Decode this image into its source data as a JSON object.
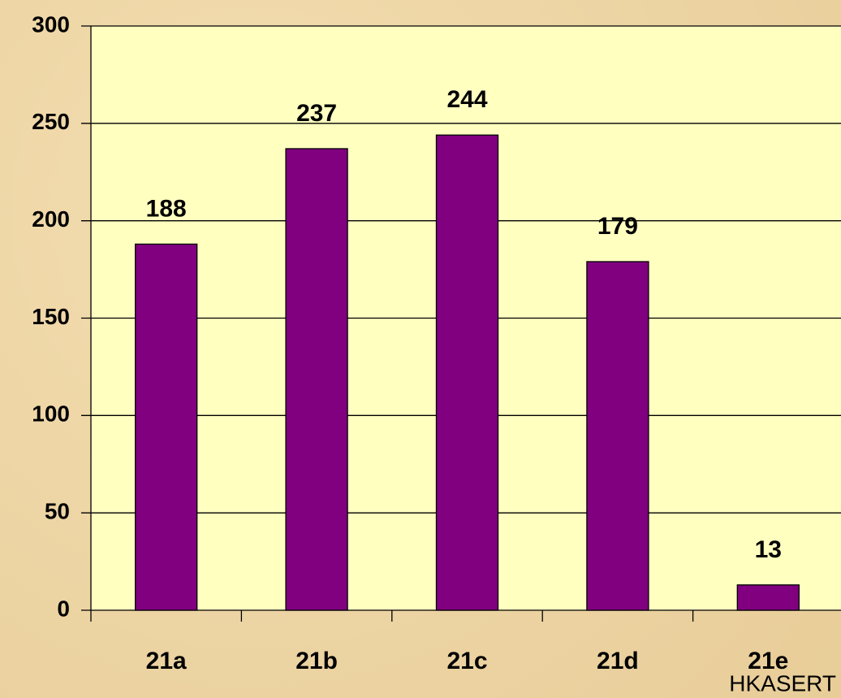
{
  "chart_data": {
    "type": "bar",
    "categories": [
      "21a",
      "21b",
      "21c",
      "21d",
      "21e"
    ],
    "values": [
      188,
      237,
      244,
      179,
      13
    ],
    "color": "#800080",
    "ylim": [
      0,
      300
    ],
    "yticks": [
      0,
      50,
      100,
      150,
      200,
      250,
      300
    ],
    "grid": true,
    "source": "HKASERT"
  }
}
